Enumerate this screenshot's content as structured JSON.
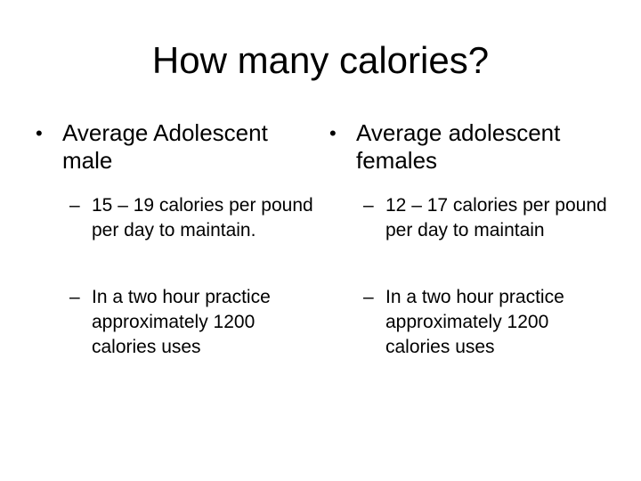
{
  "slide": {
    "title": "How many calories?",
    "columns": [
      {
        "bullet": "Average Adolescent male",
        "subitems": [
          "15 – 19 calories per pound per day to maintain.",
          "In a two hour practice approximately 1200 calories uses"
        ]
      },
      {
        "bullet": "Average adolescent females",
        "subitems": [
          "12 – 17 calories per pound per day to maintain",
          "In a two hour practice approximately 1200 calories uses"
        ]
      }
    ],
    "bullet_glyph": "•",
    "dash_glyph": "–"
  }
}
